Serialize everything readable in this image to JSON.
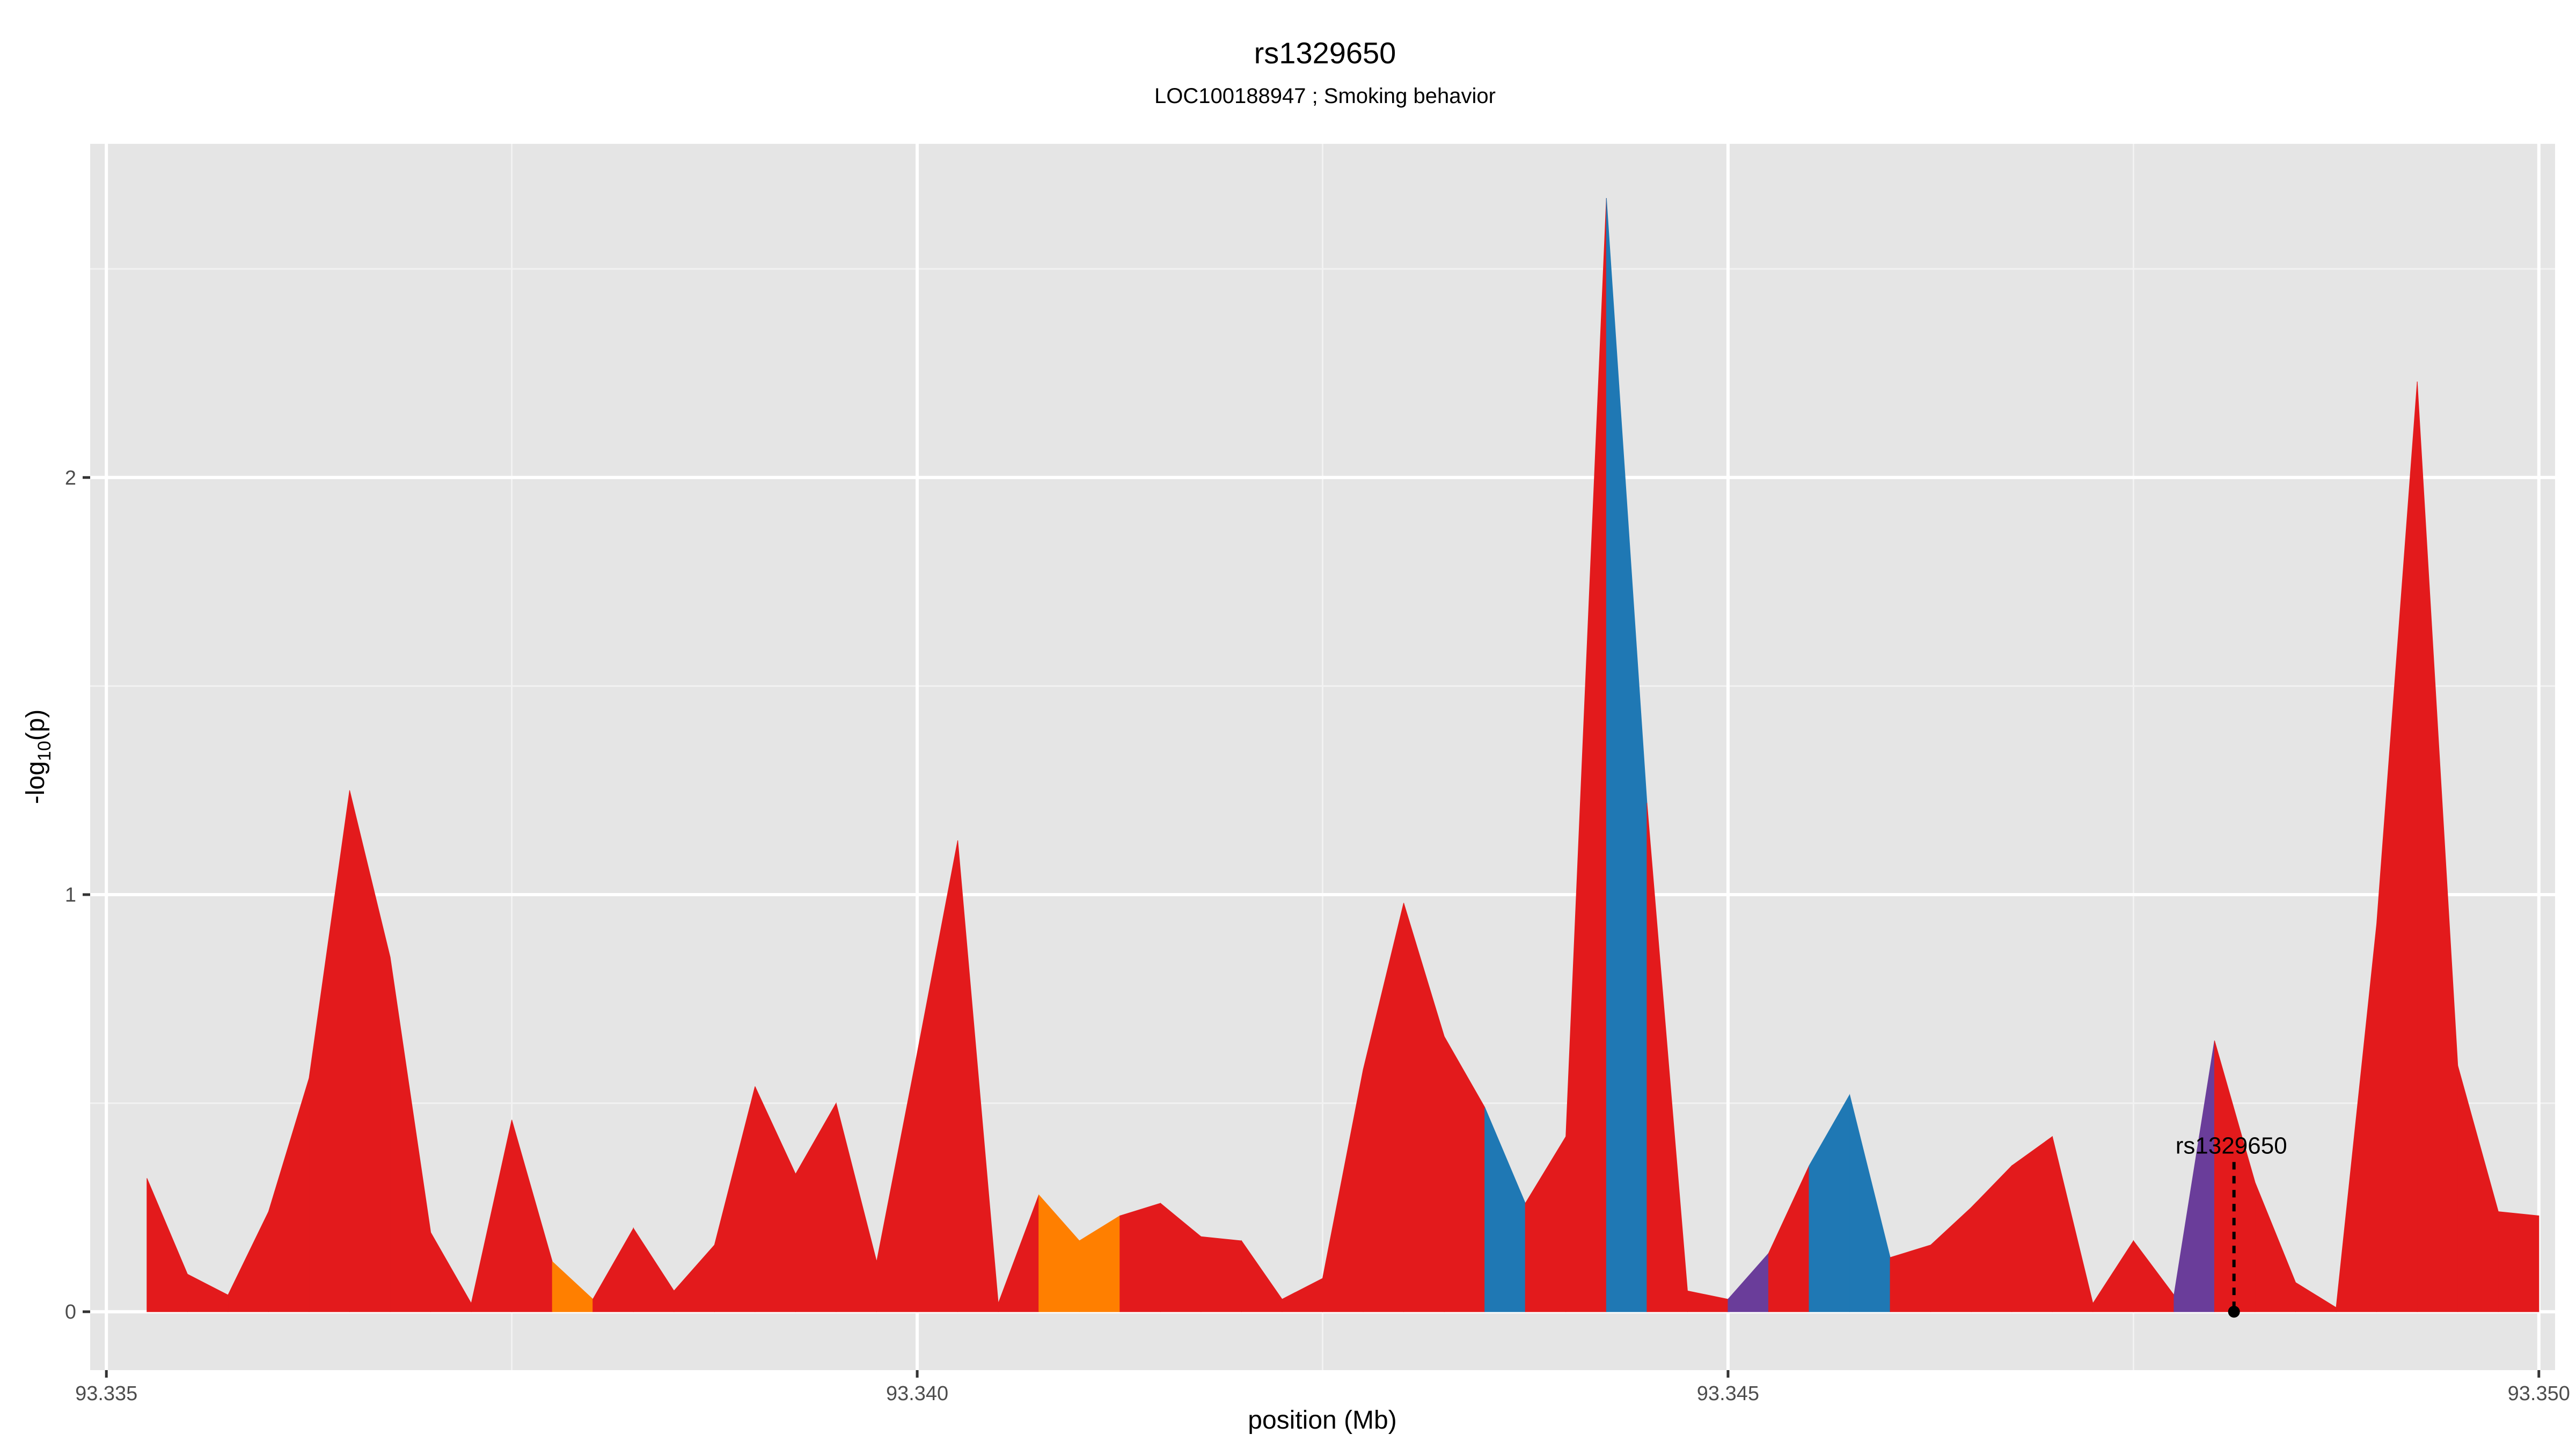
{
  "chart_data": {
    "type": "area",
    "title": "rs1329650",
    "subtitle": "LOC100188947 ; Smoking behavior",
    "xlabel": "position (Mb)",
    "ylabel_main": "-log",
    "ylabel_sub": "10",
    "ylabel_end": "(p)",
    "xlim": [
      93.3349,
      93.3501
    ],
    "ylim": [
      -0.14,
      2.8
    ],
    "x_ticks": [
      {
        "value": 93.335,
        "label": "93.335"
      },
      {
        "value": 93.34,
        "label": "93.340"
      },
      {
        "value": 93.345,
        "label": "93.345"
      },
      {
        "value": 93.35,
        "label": "93.350"
      }
    ],
    "y_ticks": [
      {
        "value": 0,
        "label": "0"
      },
      {
        "value": 1,
        "label": "1"
      },
      {
        "value": 2,
        "label": "2"
      }
    ],
    "grid": true,
    "colors": {
      "red": "#e31a1c",
      "orange": "#ff7f00",
      "blue": "#1f78b4",
      "purple": "#6a3d9a",
      "panel": "#e5e5e5",
      "grid_major": "#ffffff",
      "grid_minor": "#f2f2f2"
    },
    "points": [
      {
        "x": 93.33525,
        "y": 0.32,
        "c": "red"
      },
      {
        "x": 93.3355,
        "y": 0.09,
        "c": "red"
      },
      {
        "x": 93.33575,
        "y": 0.04,
        "c": "red"
      },
      {
        "x": 93.336,
        "y": 0.24,
        "c": "red"
      },
      {
        "x": 93.33625,
        "y": 0.56,
        "c": "red"
      },
      {
        "x": 93.3365,
        "y": 1.25,
        "c": "red"
      },
      {
        "x": 93.33675,
        "y": 0.85,
        "c": "red"
      },
      {
        "x": 93.337,
        "y": 0.19,
        "c": "red"
      },
      {
        "x": 93.33725,
        "y": 0.02,
        "c": "red"
      },
      {
        "x": 93.3375,
        "y": 0.46,
        "c": "red"
      },
      {
        "x": 93.33775,
        "y": 0.12,
        "c": "orange"
      },
      {
        "x": 93.338,
        "y": 0.03,
        "c": "red"
      },
      {
        "x": 93.33825,
        "y": 0.2,
        "c": "red"
      },
      {
        "x": 93.3385,
        "y": 0.05,
        "c": "red"
      },
      {
        "x": 93.33875,
        "y": 0.16,
        "c": "red"
      },
      {
        "x": 93.339,
        "y": 0.54,
        "c": "red"
      },
      {
        "x": 93.33925,
        "y": 0.33,
        "c": "red"
      },
      {
        "x": 93.3395,
        "y": 0.5,
        "c": "red"
      },
      {
        "x": 93.33975,
        "y": 0.12,
        "c": "red"
      },
      {
        "x": 93.34,
        "y": 0.62,
        "c": "red"
      },
      {
        "x": 93.34025,
        "y": 1.13,
        "c": "red"
      },
      {
        "x": 93.3405,
        "y": 0.02,
        "c": "red"
      },
      {
        "x": 93.34075,
        "y": 0.28,
        "c": "orange"
      },
      {
        "x": 93.341,
        "y": 0.17,
        "c": "orange"
      },
      {
        "x": 93.34125,
        "y": 0.23,
        "c": "red"
      },
      {
        "x": 93.3415,
        "y": 0.26,
        "c": "red"
      },
      {
        "x": 93.34175,
        "y": 0.18,
        "c": "red"
      },
      {
        "x": 93.342,
        "y": 0.17,
        "c": "red"
      },
      {
        "x": 93.34225,
        "y": 0.03,
        "c": "red"
      },
      {
        "x": 93.3425,
        "y": 0.08,
        "c": "red"
      },
      {
        "x": 93.34275,
        "y": 0.58,
        "c": "red"
      },
      {
        "x": 93.343,
        "y": 0.98,
        "c": "red"
      },
      {
        "x": 93.34325,
        "y": 0.66,
        "c": "red"
      },
      {
        "x": 93.3435,
        "y": 0.49,
        "c": "blue"
      },
      {
        "x": 93.34375,
        "y": 0.26,
        "c": "red"
      },
      {
        "x": 93.344,
        "y": 0.42,
        "c": "red"
      },
      {
        "x": 93.34425,
        "y": 2.67,
        "c": "blue"
      },
      {
        "x": 93.3445,
        "y": 1.22,
        "c": "red"
      },
      {
        "x": 93.34475,
        "y": 0.05,
        "c": "red"
      },
      {
        "x": 93.345,
        "y": 0.03,
        "c": "purple"
      },
      {
        "x": 93.34525,
        "y": 0.14,
        "c": "red"
      },
      {
        "x": 93.3455,
        "y": 0.35,
        "c": "blue"
      },
      {
        "x": 93.34575,
        "y": 0.52,
        "c": "blue"
      },
      {
        "x": 93.346,
        "y": 0.13,
        "c": "red"
      },
      {
        "x": 93.34625,
        "y": 0.16,
        "c": "red"
      },
      {
        "x": 93.3465,
        "y": 0.25,
        "c": "red"
      },
      {
        "x": 93.34675,
        "y": 0.35,
        "c": "red"
      },
      {
        "x": 93.347,
        "y": 0.42,
        "c": "red"
      },
      {
        "x": 93.34725,
        "y": 0.02,
        "c": "red"
      },
      {
        "x": 93.3475,
        "y": 0.17,
        "c": "red"
      },
      {
        "x": 93.34775,
        "y": 0.04,
        "c": "purple"
      },
      {
        "x": 93.348,
        "y": 0.65,
        "c": "red"
      },
      {
        "x": 93.34825,
        "y": 0.31,
        "c": "red"
      },
      {
        "x": 93.3485,
        "y": 0.07,
        "c": "red"
      },
      {
        "x": 93.34875,
        "y": 0.01,
        "c": "red"
      },
      {
        "x": 93.349,
        "y": 0.93,
        "c": "red"
      },
      {
        "x": 93.34925,
        "y": 2.23,
        "c": "red"
      },
      {
        "x": 93.3495,
        "y": 0.59,
        "c": "red"
      },
      {
        "x": 93.34975,
        "y": 0.24,
        "c": "red"
      },
      {
        "x": 93.35,
        "y": 0.23,
        "c": "red"
      }
    ],
    "annotation": {
      "label": "rs1329650",
      "x": 93.34812,
      "y_label": 0.31,
      "y_point": 0.0
    }
  }
}
